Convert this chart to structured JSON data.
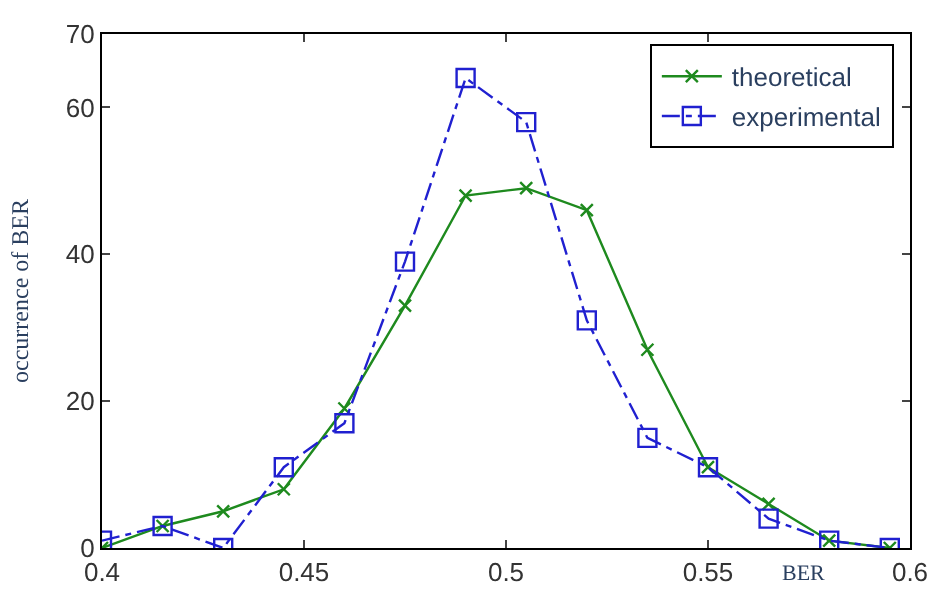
{
  "chart_data": {
    "type": "line",
    "xlabel": "BER",
    "ylabel": "occurrence of BER",
    "x": [
      0.4,
      0.415,
      0.43,
      0.445,
      0.46,
      0.475,
      0.49,
      0.505,
      0.52,
      0.535,
      0.55,
      0.565,
      0.58,
      0.595
    ],
    "series": [
      {
        "name": "theoretical",
        "color": "#1e8a1e",
        "marker": "cross",
        "line_style": "solid",
        "values": [
          0,
          3,
          5,
          8,
          19,
          33,
          48,
          49,
          46,
          27,
          11,
          6,
          1,
          0
        ]
      },
      {
        "name": "experimental",
        "color": "#2020d0",
        "marker": "square",
        "line_style": "dashed",
        "values": [
          1,
          3,
          0,
          11,
          17,
          39,
          64,
          58,
          31,
          15,
          11,
          4,
          1,
          0
        ]
      }
    ],
    "xlim": [
      0.4,
      0.6
    ],
    "xticks": [
      0.4,
      0.45,
      0.5,
      0.55,
      0.6
    ],
    "ylim": [
      0,
      70
    ],
    "yticks": [
      0,
      20,
      40,
      60,
      70
    ],
    "legend": "top right"
  }
}
